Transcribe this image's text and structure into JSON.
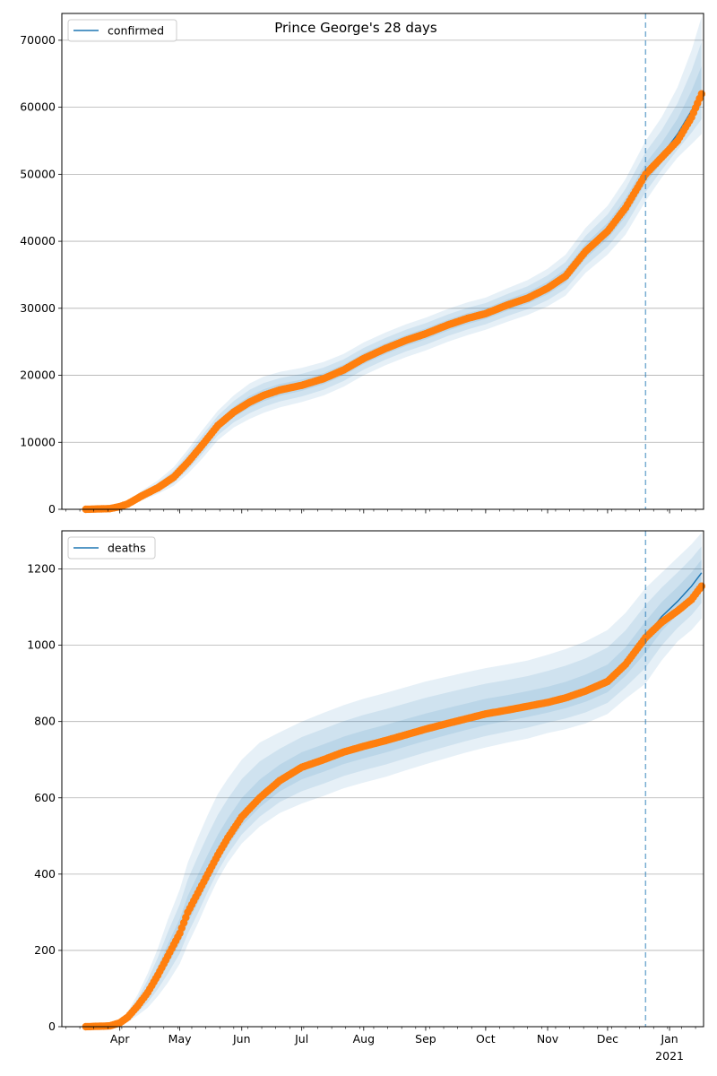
{
  "figure": {
    "title": "Prince George's 28 days"
  },
  "colors": {
    "line": "#1f77b4",
    "points": "#ff7f0e",
    "band": "#1f77b4",
    "grid": "#b0b0b0",
    "vline": "#1f77b4"
  },
  "chart_data": [
    {
      "type": "line",
      "title": "Prince George's 28 days",
      "xlabel": "",
      "ylabel": "",
      "x_range": [
        "2020-03-03",
        "2021-01-18"
      ],
      "ylim": [
        0,
        74000
      ],
      "y_ticks": [
        0,
        10000,
        20000,
        30000,
        40000,
        50000,
        60000,
        70000
      ],
      "grid": "horizontal",
      "legend": {
        "position": "top-left",
        "entries": [
          "confirmed"
        ]
      },
      "forecast_start": "2020-12-20",
      "x_ticks": [
        "Apr",
        "May",
        "Jun",
        "Jul",
        "Aug",
        "Sep",
        "Oct",
        "Nov",
        "Dec",
        "Jan"
      ],
      "x_tick_sublabel": "2021",
      "observed": {
        "x": [
          "2020-03-15",
          "2020-03-27",
          "2020-04-01",
          "2020-04-05",
          "2020-04-12",
          "2020-04-20",
          "2020-04-28",
          "2020-05-05",
          "2020-05-12",
          "2020-05-20",
          "2020-05-28",
          "2020-06-05",
          "2020-06-12",
          "2020-06-20",
          "2020-07-01",
          "2020-07-12",
          "2020-07-22",
          "2020-08-01",
          "2020-08-12",
          "2020-08-22",
          "2020-09-01",
          "2020-09-12",
          "2020-09-22",
          "2020-10-01",
          "2020-10-12",
          "2020-10-22",
          "2020-11-01",
          "2020-11-10",
          "2020-11-20",
          "2020-12-01",
          "2020-12-10",
          "2020-12-20",
          "2020-12-28",
          "2021-01-05",
          "2021-01-12",
          "2021-01-17"
        ],
        "y": [
          0,
          100,
          400,
          800,
          2000,
          3200,
          4800,
          7000,
          9500,
          12500,
          14500,
          16000,
          17000,
          17800,
          18500,
          19500,
          20800,
          22500,
          24000,
          25200,
          26200,
          27500,
          28500,
          29200,
          30500,
          31500,
          33000,
          34800,
          38500,
          41500,
          45000,
          50000,
          52500,
          55000,
          58500,
          62000
        ]
      },
      "model": {
        "series": [
          {
            "name": "confirmed",
            "values": [
              0,
              100,
              400,
              800,
              2000,
              3200,
              4800,
              7000,
              9500,
              12500,
              14500,
              16000,
              17000,
              17800,
              18500,
              19500,
              20800,
              22500,
              24000,
              25200,
              26200,
              27500,
              28500,
              29200,
              30500,
              31500,
              33000,
              34800,
              38500,
              41500,
              45000,
              50000,
              52800,
              56000,
              59500,
              62500
            ]
          }
        ],
        "band_upper": [
          0,
          150,
          600,
          1200,
          2800,
          4300,
          6300,
          8900,
          11700,
          14700,
          17000,
          18800,
          19800,
          20500,
          21100,
          22000,
          23200,
          24900,
          26400,
          27600,
          28600,
          29900,
          30900,
          31600,
          33000,
          34200,
          35900,
          38000,
          42000,
          45300,
          49300,
          55000,
          58500,
          63000,
          68500,
          73500
        ],
        "band_lower": [
          0,
          60,
          250,
          500,
          1300,
          2300,
          3500,
          5300,
          7500,
          10300,
          12200,
          13500,
          14400,
          15200,
          16000,
          17000,
          18300,
          20000,
          21500,
          22700,
          23700,
          25000,
          26000,
          26800,
          28000,
          29000,
          30300,
          31900,
          35300,
          38000,
          41000,
          46000,
          49500,
          52500,
          54500,
          56000
        ]
      }
    },
    {
      "type": "line",
      "title": "",
      "xlabel": "",
      "ylabel": "",
      "x_range": [
        "2020-03-03",
        "2021-01-18"
      ],
      "ylim": [
        0,
        1300
      ],
      "y_ticks": [
        0,
        200,
        400,
        600,
        800,
        1000,
        1200
      ],
      "grid": "horizontal",
      "legend": {
        "position": "top-left",
        "entries": [
          "deaths"
        ]
      },
      "forecast_start": "2020-12-20",
      "x_ticks": [
        "Apr",
        "May",
        "Jun",
        "Jul",
        "Aug",
        "Sep",
        "Oct",
        "Nov",
        "Dec",
        "Jan"
      ],
      "x_tick_sublabel": "2021",
      "observed": {
        "x": [
          "2020-03-15",
          "2020-03-27",
          "2020-04-01",
          "2020-04-05",
          "2020-04-10",
          "2020-04-15",
          "2020-04-20",
          "2020-04-25",
          "2020-05-01",
          "2020-05-05",
          "2020-05-10",
          "2020-05-15",
          "2020-05-20",
          "2020-05-25",
          "2020-06-01",
          "2020-06-10",
          "2020-06-20",
          "2020-07-01",
          "2020-07-12",
          "2020-07-22",
          "2020-08-01",
          "2020-08-12",
          "2020-08-22",
          "2020-09-01",
          "2020-09-12",
          "2020-09-22",
          "2020-10-01",
          "2020-10-12",
          "2020-10-22",
          "2020-11-01",
          "2020-11-10",
          "2020-11-20",
          "2020-12-01",
          "2020-12-10",
          "2020-12-20",
          "2020-12-28",
          "2021-01-05",
          "2021-01-12",
          "2021-01-17"
        ],
        "y": [
          0,
          2,
          10,
          25,
          55,
          90,
          135,
          185,
          245,
          300,
          350,
          400,
          450,
          495,
          550,
          600,
          645,
          680,
          700,
          720,
          735,
          750,
          765,
          780,
          795,
          808,
          820,
          830,
          840,
          850,
          862,
          880,
          905,
          950,
          1020,
          1060,
          1090,
          1120,
          1155
        ]
      },
      "model": {
        "series": [
          {
            "name": "deaths",
            "values": [
              0,
              2,
              10,
              25,
              55,
              90,
              135,
              185,
              245,
              300,
              350,
              400,
              450,
              495,
              550,
              600,
              645,
              680,
              700,
              720,
              735,
              750,
              765,
              780,
              795,
              808,
              820,
              830,
              840,
              850,
              862,
              880,
              905,
              950,
              1020,
              1075,
              1115,
              1155,
              1190
            ]
          }
        ],
        "band_upper": [
          0,
          4,
          16,
          40,
          85,
          140,
          205,
          280,
          360,
          430,
          495,
          555,
          610,
          650,
          700,
          745,
          772,
          800,
          823,
          843,
          860,
          875,
          890,
          905,
          918,
          930,
          940,
          950,
          960,
          975,
          990,
          1010,
          1040,
          1085,
          1150,
          1190,
          1230,
          1265,
          1295
        ],
        "band_lower": [
          0,
          1,
          5,
          12,
          30,
          50,
          80,
          115,
          165,
          215,
          270,
          330,
          385,
          430,
          480,
          525,
          560,
          585,
          605,
          625,
          640,
          655,
          672,
          688,
          705,
          720,
          732,
          745,
          755,
          770,
          780,
          795,
          820,
          860,
          900,
          960,
          1010,
          1040,
          1070
        ]
      }
    }
  ]
}
